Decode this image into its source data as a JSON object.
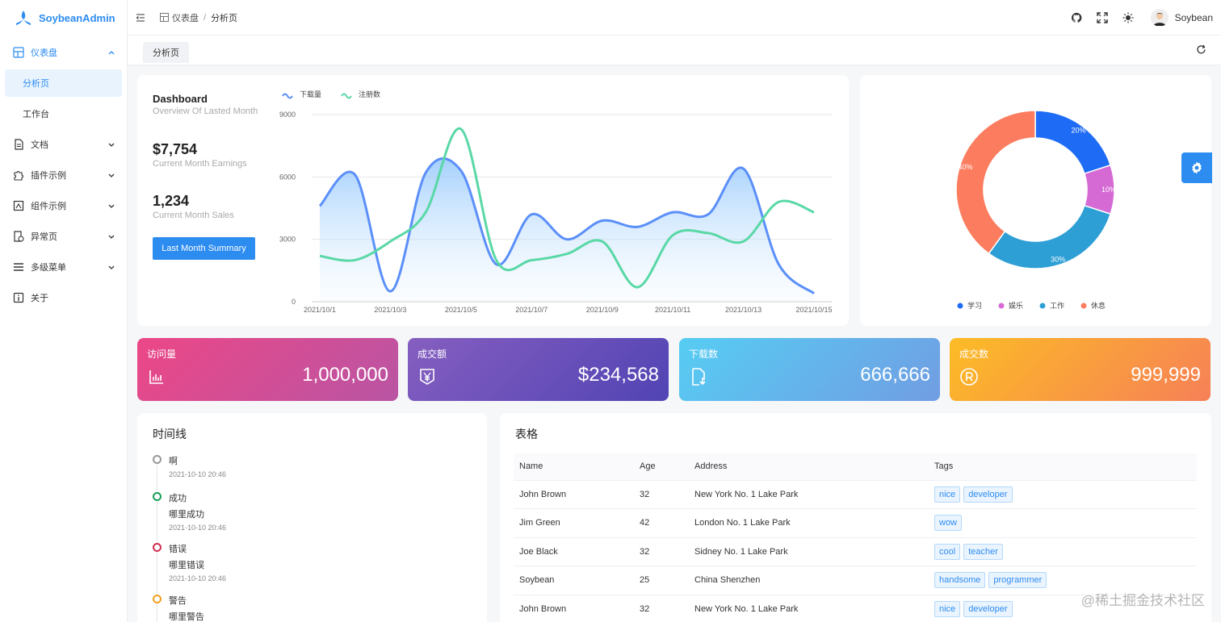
{
  "app": {
    "name": "SoybeanAdmin"
  },
  "sidebar": {
    "items": [
      {
        "label": "仪表盘",
        "icon": "dashboard-icon",
        "expanded": true
      },
      {
        "label": "文档",
        "icon": "document-icon"
      },
      {
        "label": "插件示例",
        "icon": "plugin-icon"
      },
      {
        "label": "组件示例",
        "icon": "component-icon"
      },
      {
        "label": "异常页",
        "icon": "exception-icon"
      },
      {
        "label": "多级菜单",
        "icon": "menu-icon"
      },
      {
        "label": "关于",
        "icon": "info-icon"
      }
    ],
    "dashboard_children": [
      "分析页",
      "工作台"
    ]
  },
  "header": {
    "breadcrumb": [
      "仪表盘",
      "分析页"
    ],
    "user": "Soybean"
  },
  "tabs": [
    "分析页"
  ],
  "dashboard": {
    "title": "Dashboard",
    "subtitle": "Overview Of Lasted Month",
    "earnings": "$7,754",
    "earnings_label": "Current Month Earnings",
    "sales": "1,234",
    "sales_label": "Current Month Sales",
    "button": "Last Month Summary"
  },
  "stats": [
    {
      "title": "访问量",
      "value": "1,000,000",
      "icon": "bar-chart-icon"
    },
    {
      "title": "成交额",
      "value": "$234,568",
      "icon": "yen-icon"
    },
    {
      "title": "下载数",
      "value": "666,666",
      "icon": "download-file-icon"
    },
    {
      "title": "成交数",
      "value": "999,999",
      "icon": "registered-icon"
    }
  ],
  "timeline": {
    "title": "时间线",
    "items": [
      {
        "title": "啊",
        "content": "",
        "time": "2021-10-10 20:46",
        "color": "#999999"
      },
      {
        "title": "成功",
        "content": "哪里成功",
        "time": "2021-10-10 20:46",
        "color": "#18a058"
      },
      {
        "title": "错误",
        "content": "哪里错误",
        "time": "2021-10-10 20:46",
        "color": "#d03050"
      },
      {
        "title": "警告",
        "content": "哪里警告",
        "time": "",
        "color": "#f0a020"
      }
    ]
  },
  "table": {
    "title": "表格",
    "columns": [
      "Name",
      "Age",
      "Address",
      "Tags"
    ],
    "rows": [
      {
        "name": "John Brown",
        "age": "32",
        "address": "New York No. 1 Lake Park",
        "tags": [
          "nice",
          "developer"
        ]
      },
      {
        "name": "Jim Green",
        "age": "42",
        "address": "London No. 1 Lake Park",
        "tags": [
          "wow"
        ]
      },
      {
        "name": "Joe Black",
        "age": "32",
        "address": "Sidney No. 1 Lake Park",
        "tags": [
          "cool",
          "teacher"
        ]
      },
      {
        "name": "Soybean",
        "age": "25",
        "address": "China Shenzhen",
        "tags": [
          "handsome",
          "programmer"
        ]
      },
      {
        "name": "John Brown",
        "age": "32",
        "address": "New York No. 1 Lake Park",
        "tags": [
          "nice",
          "developer"
        ]
      }
    ]
  },
  "watermark": "@稀土掘金技术社区",
  "colors": {
    "primary": "#2d8cf0"
  },
  "chart_data": [
    {
      "type": "line",
      "categories": [
        "2021/10/1",
        "2021/10/2",
        "2021/10/3",
        "2021/10/4",
        "2021/10/5",
        "2021/10/6",
        "2021/10/7",
        "2021/10/8",
        "2021/10/9",
        "2021/10/10",
        "2021/10/11",
        "2021/10/12",
        "2021/10/13",
        "2021/10/14",
        "2021/10/15"
      ],
      "x_tick_labels": [
        "2021/10/1",
        "2021/10/3",
        "2021/10/5",
        "2021/10/7",
        "2021/10/9",
        "2021/10/11",
        "2021/10/13",
        "2021/10/15"
      ],
      "y_ticks": [
        "0",
        "3000",
        "6000",
        "9000"
      ],
      "ylim": [
        0,
        9000
      ],
      "series": [
        {
          "name": "下载量",
          "color": "#5b8ff9",
          "area": true,
          "values": [
            4600,
            6100,
            500,
            6200,
            6300,
            1800,
            4200,
            3000,
            3900,
            3600,
            4300,
            4200,
            6400,
            1800,
            400
          ]
        },
        {
          "name": "注册数",
          "color": "#5ad8a6",
          "area": false,
          "values": [
            2200,
            2000,
            2900,
            4300,
            8300,
            2000,
            2000,
            2300,
            2900,
            700,
            3200,
            3300,
            2900,
            4800,
            4300
          ]
        }
      ]
    },
    {
      "type": "pie",
      "labels": [
        "学习",
        "娱乐",
        "工作",
        "休息"
      ],
      "values": [
        20,
        10,
        30,
        40
      ],
      "colors": [
        "#1e6cf5",
        "#d66ad5",
        "#2e9fd5",
        "#fb7c5e"
      ],
      "value_labels": [
        "20%",
        "10%",
        "30%",
        "40%"
      ]
    }
  ]
}
